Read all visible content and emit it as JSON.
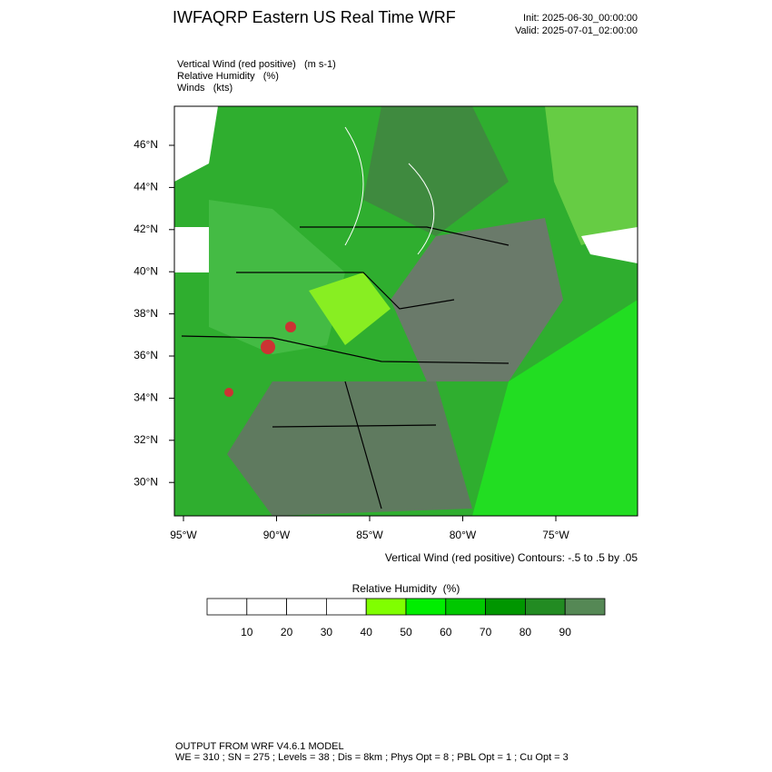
{
  "header": {
    "title": "IWFAQRP Eastern US Real Time WRF",
    "init": "Init: 2025-06-30_00:00:00",
    "valid": "Valid: 2025-07-01_02:00:00"
  },
  "fields": [
    "Vertical Wind (red positive)   (m s-1)",
    "Relative Humidity   (%)",
    "Winds   (kts)"
  ],
  "map": {
    "lat_labels": [
      "46°N",
      "44°N",
      "42°N",
      "40°N",
      "38°N",
      "36°N",
      "34°N",
      "32°N",
      "30°N"
    ],
    "lon_labels": [
      "95°W",
      "90°W",
      "85°W",
      "80°W",
      "75°W"
    ],
    "contour_note": "Vertical Wind (red positive) Contours: -.5 to .5 by .05"
  },
  "colorbar": {
    "title": "Relative Humidity  (%)",
    "boundaries": [
      10,
      20,
      30,
      40,
      50,
      60,
      70,
      80,
      90
    ],
    "colors": [
      "#ffffff",
      "#ffffff",
      "#ffffff",
      "#ffffff",
      "#80ff00",
      "#00ee00",
      "#00c800",
      "#009600",
      "#228b22",
      "#558855"
    ]
  },
  "footer": [
    "OUTPUT FROM WRF V4.6.1 MODEL",
    "WE = 310 ; SN = 275 ; Levels = 38 ; Dis = 8km ; Phys Opt = 8 ; PBL Opt = 1 ; Cu Opt = 3"
  ]
}
